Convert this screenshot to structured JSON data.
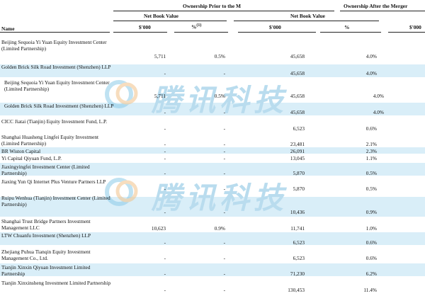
{
  "header": {
    "ownership_prior": "Ownership Prior to the M",
    "ownership_after": "Ownership After the Merger",
    "net_book_value": "Net Book Value",
    "name": "Name",
    "sv": "$'000",
    "pct": "%",
    "footnote": "(1)",
    "sv_cut": "$'000"
  },
  "watermark": {
    "text": "腾讯科技"
  },
  "rows": [
    {
      "name": "Beijing Sequoia Yi Yuan Equity Investment Center (Limited Partnership)",
      "sv1": "5,711",
      "pct1": "0.5%",
      "sv2": "45,658",
      "pct2": "4.0%"
    },
    {
      "name": "Golden Brick Silk Road Investment (Shenzhen) LLP",
      "sv1": "-",
      "pct1": "-",
      "sv2": "45,658",
      "pct2": "4.0%"
    },
    {
      "name": "Beijing Sequoia Yi Yuan Equity Investment Center (Limited Partnership)",
      "sv1": "5,711",
      "pct1": "0.5%",
      "sv2": "45,658",
      "pct2": "4.0%"
    },
    {
      "name": "Golden Brick Silk Road Investment (Shenzhen) LLP",
      "sv1": "-",
      "pct1": "-",
      "sv2": "45,658",
      "pct2": "4.0%"
    },
    {
      "name": "CICC Jiatai (Tianjin) Equity Investment Fund, L.P.",
      "sv1": "-",
      "pct1": "-",
      "sv2": "6,523",
      "pct2": "0.6%"
    },
    {
      "name": "Shanghai Huasheng Lingfei Equity Investment (Limited Partnership)",
      "sv1": "-",
      "pct1": "-",
      "sv2": "23,481",
      "pct2": "2.1%"
    },
    {
      "name": "BR Wiston Capital",
      "sv1": "-",
      "pct1": "-",
      "sv2": "26,091",
      "pct2": "2.3%"
    },
    {
      "name": "Yi Capital Qiyuan Fund, L.P.",
      "sv1": "-",
      "pct1": "-",
      "sv2": "13,045",
      "pct2": "1.1%"
    },
    {
      "name": "Jiaxingyingfei Investment Center (Limited Partnership)",
      "sv1": "-",
      "pct1": "-",
      "sv2": "5,870",
      "pct2": "0.5%"
    },
    {
      "name": "Jiaxing Yun Qi Internet Plus Venture Partners LLP",
      "sv1": "-",
      "pct1": "-",
      "sv2": "5,870",
      "pct2": "0.5%"
    },
    {
      "name": "Ruipu Wenhua (Tianjin) Investment Center (Limited Partnership)",
      "sv1": "-",
      "pct1": "-",
      "sv2": "10,436",
      "pct2": "0.9%"
    },
    {
      "name": "Shanghai Trust Bridge Partners Investment Management LLC",
      "sv1": "10,623",
      "pct1": "0.9%",
      "sv2": "11,741",
      "pct2": "1.0%"
    },
    {
      "name": "LTW Chuanfu Investment (Shenzhen) LLP",
      "sv1": "-",
      "pct1": "-",
      "sv2": "6,523",
      "pct2": "0.6%"
    },
    {
      "name": "Zhejiang Puhua Tianqin Equity Investment Management Co., Ltd.",
      "sv1": "-",
      "pct1": "-",
      "sv2": "6,523",
      "pct2": "0.6%"
    },
    {
      "name": "Tianjin Xinxin Qiyuan Investment Limited Partnership",
      "sv1": "-",
      "pct1": "-",
      "sv2": "71,230",
      "pct2": "6.2%"
    },
    {
      "name": "Tianjin Xinxinsheng Investment Limited Partnership",
      "sv1": "-",
      "pct1": "-",
      "sv2": "130,453",
      "pct2": "11.4%"
    }
  ]
}
